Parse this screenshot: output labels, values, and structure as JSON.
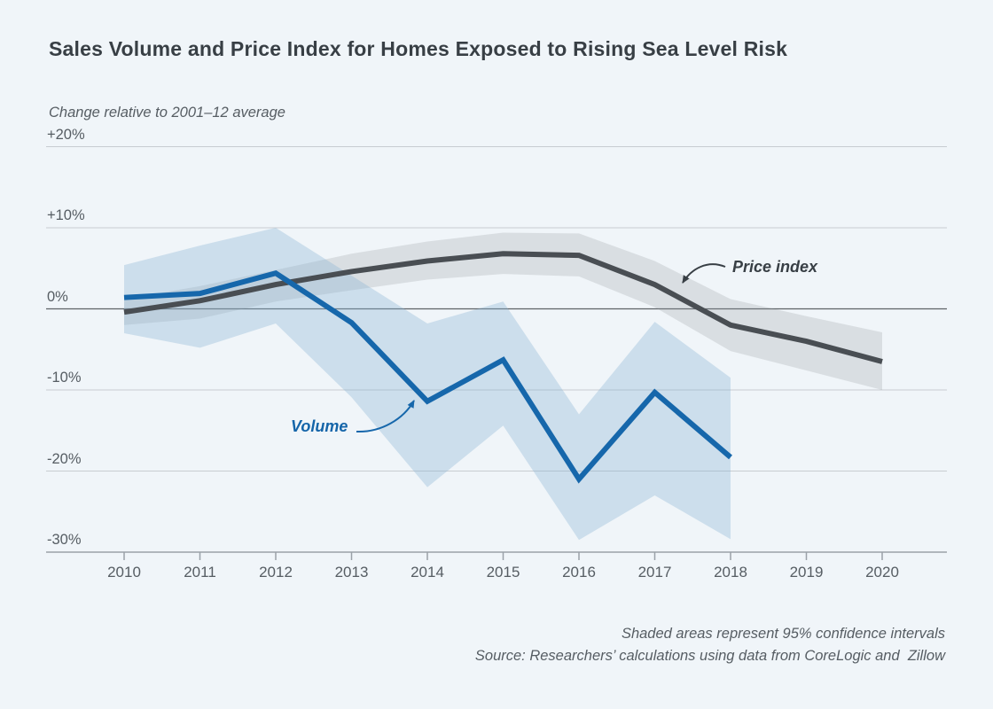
{
  "header": {
    "title": "Sales Volume and Price Index for Homes Exposed to Rising Sea Level Risk",
    "subtitle": "Change relative to 2001–12 average"
  },
  "chart_data": {
    "type": "line",
    "title": "Sales Volume and Price Index for Homes Exposed to Rising Sea Level Risk",
    "subtitle": "Change relative to 2001–12 average",
    "unit": "percent change",
    "x": [
      2010,
      2011,
      2012,
      2013,
      2014,
      2015,
      2016,
      2017,
      2018,
      2019,
      2020
    ],
    "series": [
      {
        "name": "Price index",
        "color": "#494e53",
        "band_color": "rgba(148,151,155,0.24)",
        "values": [
          -0.4,
          1.0,
          3.0,
          4.6,
          5.9,
          6.8,
          6.6,
          3.0,
          -2.0,
          -4.0,
          -6.5
        ],
        "band_top": [
          1.2,
          2.8,
          4.8,
          6.8,
          8.3,
          9.4,
          9.3,
          5.9,
          1.2,
          -0.9,
          -2.9
        ],
        "band_bottom": [
          -2.0,
          -1.2,
          0.9,
          2.3,
          3.6,
          4.3,
          4.0,
          0.2,
          -5.2,
          -7.6,
          -10.0
        ]
      },
      {
        "name": "Volume",
        "color": "#1667ab",
        "band_color": "rgba(134,180,212,0.34)",
        "values": [
          1.4,
          1.9,
          4.4,
          -1.7,
          -11.4,
          -6.3,
          -21.0,
          -10.3,
          -18.3,
          null,
          null
        ],
        "band_top": [
          5.4,
          7.8,
          10.0,
          4.1,
          -1.8,
          0.9,
          -13.0,
          -1.6,
          -8.5,
          null,
          null
        ],
        "band_bottom": [
          -3.0,
          -4.8,
          -1.8,
          -10.9,
          -22.0,
          -14.4,
          -28.5,
          -23.0,
          -28.4,
          null,
          null
        ]
      }
    ],
    "ylim": [
      -30,
      20
    ],
    "yticks": [
      {
        "label": "+20%",
        "value": 20
      },
      {
        "label": "+10%",
        "value": 10
      },
      {
        "label": "0%",
        "value": 0
      },
      {
        "label": "-10%",
        "value": -10
      },
      {
        "label": "-20%",
        "value": -20
      },
      {
        "label": "-30%",
        "value": -30
      }
    ],
    "grid": true,
    "legend_position": "none",
    "annotations": [
      {
        "id": "price",
        "text": "Price index"
      },
      {
        "id": "volume",
        "text": "Volume"
      }
    ],
    "notes": "Shaded areas represent 95% confidence intervals"
  },
  "footer": {
    "note1": "Shaded areas represent 95% confidence intervals",
    "note2": "Source: Researchers’ calculations using data from CoreLogic and  Zillow"
  },
  "colors": {
    "background": "#f0f5f9",
    "title_text": "#383f45",
    "muted_text": "#565d63",
    "gridline": "#c7ccd1",
    "zero_line": "#5d6368",
    "axis_line": "#9aa1a8",
    "volume_blue": "#1667ab",
    "price_gray": "#494e53"
  }
}
